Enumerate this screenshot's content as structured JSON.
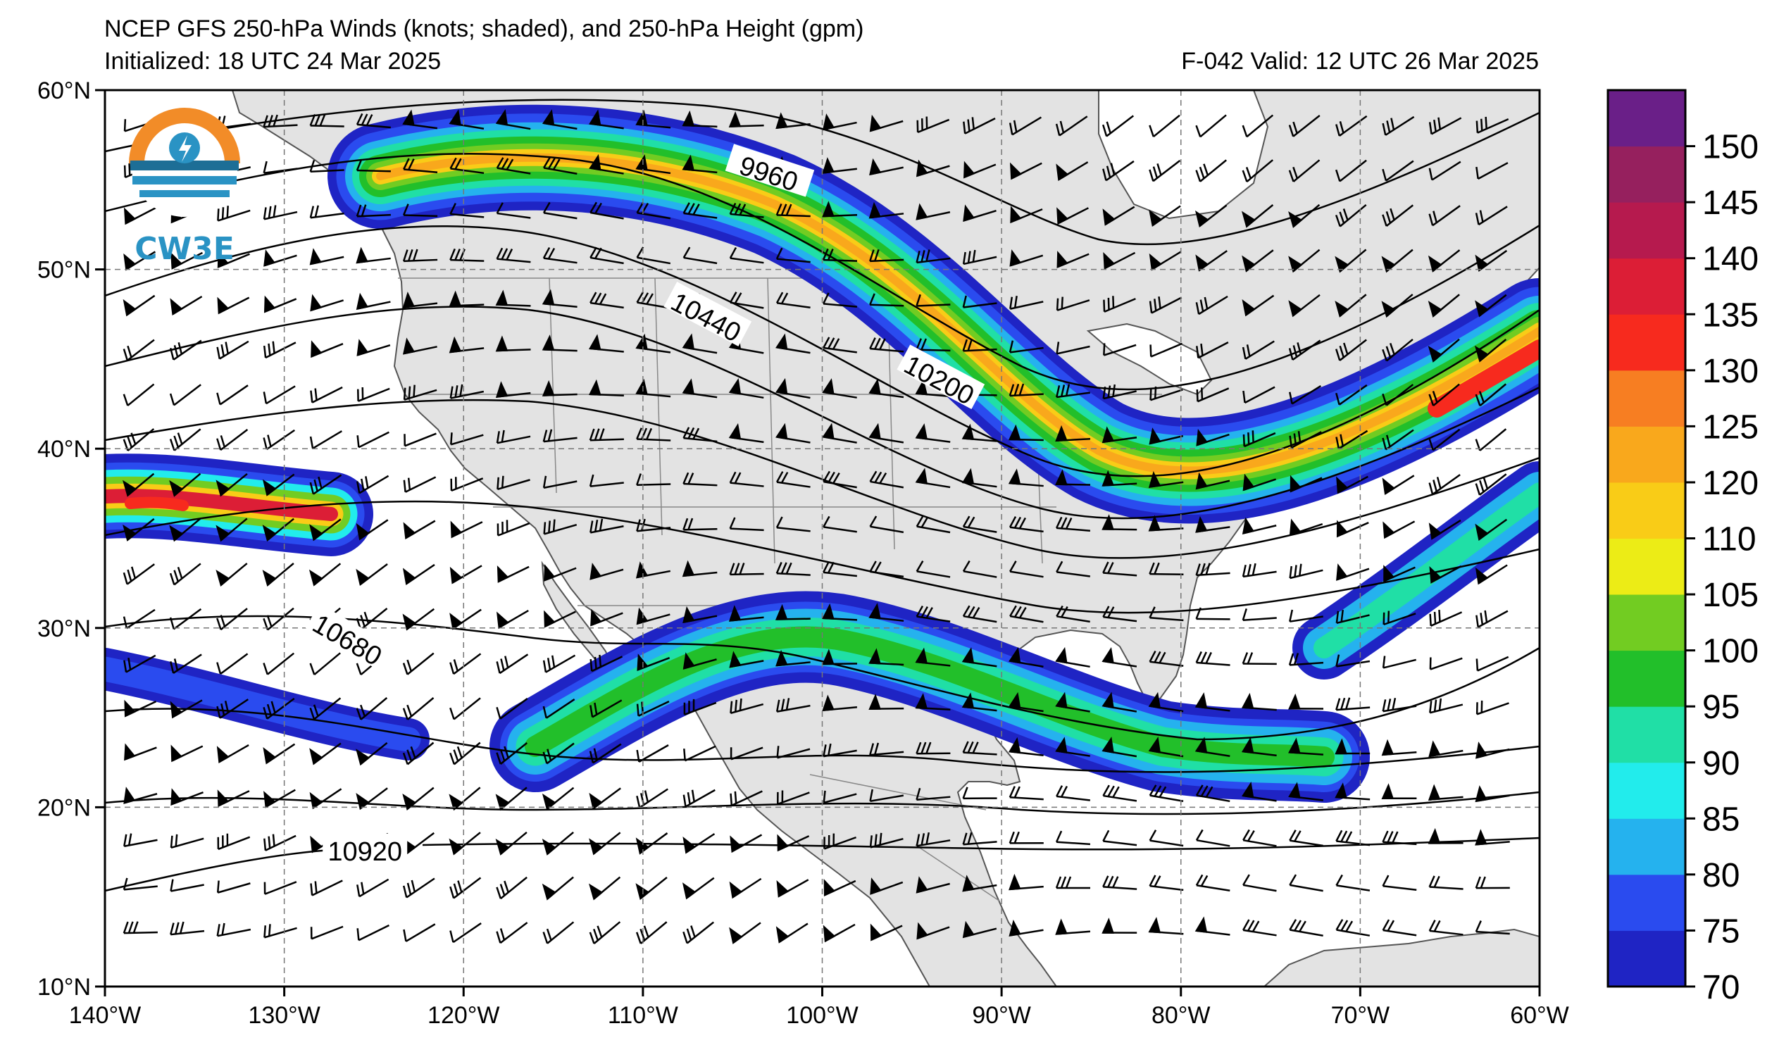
{
  "header": {
    "title": "NCEP GFS 250-hPa Winds (knots; shaded), and 250-hPa Height (gpm)",
    "initialized": "Initialized: 18 UTC 24 Mar 2025",
    "valid": "F-042  Valid: 12 UTC 26 Mar 2025"
  },
  "logo": {
    "text": "CW3E"
  },
  "map": {
    "lon_range": [
      -140,
      -60
    ],
    "lat_range": [
      10,
      60
    ],
    "lon_ticks": [
      "140°W",
      "130°W",
      "120°W",
      "110°W",
      "100°W",
      "90°W",
      "80°W",
      "70°W",
      "60°W"
    ],
    "lat_ticks": [
      "60°N",
      "50°N",
      "40°N",
      "30°N",
      "20°N",
      "10°N"
    ],
    "land_color": "#e3e3e3",
    "ocean_color": "#ffffff",
    "grid": "dashed",
    "contour_labels": [
      {
        "text": "9960",
        "lon": -103,
        "lat": 55.3
      },
      {
        "text": "10200",
        "lon": -93.5,
        "lat": 43.8
      },
      {
        "text": "10440",
        "lon": -106.5,
        "lat": 47.3
      },
      {
        "text": "10680",
        "lon": -126.5,
        "lat": 29.3
      },
      {
        "text": "10920",
        "lon": -125.5,
        "lat": 17.5
      }
    ]
  },
  "colorbar": {
    "bounds": [
      70,
      75,
      80,
      85,
      90,
      95,
      100,
      105,
      110,
      120,
      125,
      130,
      135,
      140,
      145,
      150,
      155
    ],
    "labels": [
      "70",
      "75",
      "80",
      "85",
      "90",
      "95",
      "100",
      "105",
      "110",
      "120",
      "125",
      "130",
      "135",
      "140",
      "145",
      "150"
    ],
    "colors": [
      "#1f24c4",
      "#2a4bef",
      "#25b2ee",
      "#22ecec",
      "#20dfa6",
      "#22bf2a",
      "#72cc22",
      "#ecec16",
      "#f9cc17",
      "#f9a81c",
      "#f77e22",
      "#f72a1e",
      "#dc1e36",
      "#b61a4e",
      "#96205e",
      "#6a1f88"
    ]
  }
}
